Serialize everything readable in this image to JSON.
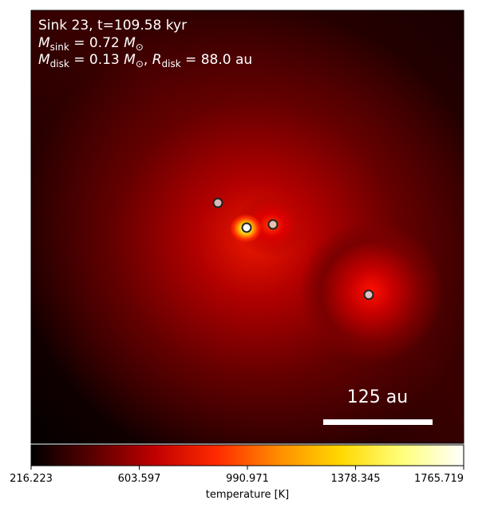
{
  "title_line": "Sink 23, t=109.58 kyr",
  "mass_line": {
    "symbol": "M",
    "sub": "sink",
    "eq": " = 0.72 ",
    "unit": "M",
    "unit_sub": "⊙"
  },
  "disk_line": {
    "symbol": "M",
    "sub": "disk",
    "eq": " = 0.13 ",
    "unit": "M",
    "unit_sub": "⊙",
    "sep": ", ",
    "r_symbol": "R",
    "r_sub": "disk",
    "r_eq": " = 88.0 au"
  },
  "scale_bar_label": "125 au",
  "colorbar": {
    "label": "temperature [K]",
    "ticks": [
      "216.223",
      "603.597",
      "990.971",
      "1378.345",
      "1765.719"
    ],
    "colormap": "hot",
    "stops": [
      "#000000",
      "#5a0000",
      "#c00000",
      "#ff2a00",
      "#ff8c00",
      "#ffd800",
      "#ffff7a",
      "#ffffff"
    ]
  },
  "sinks": [
    {
      "name": "sink-a",
      "color": "#d8b8b8"
    },
    {
      "name": "sink-primary",
      "color": "#ffffff"
    },
    {
      "name": "sink-b",
      "color": "#e8c0b0"
    },
    {
      "name": "sink-c",
      "color": "#e0c0c0"
    }
  ]
}
